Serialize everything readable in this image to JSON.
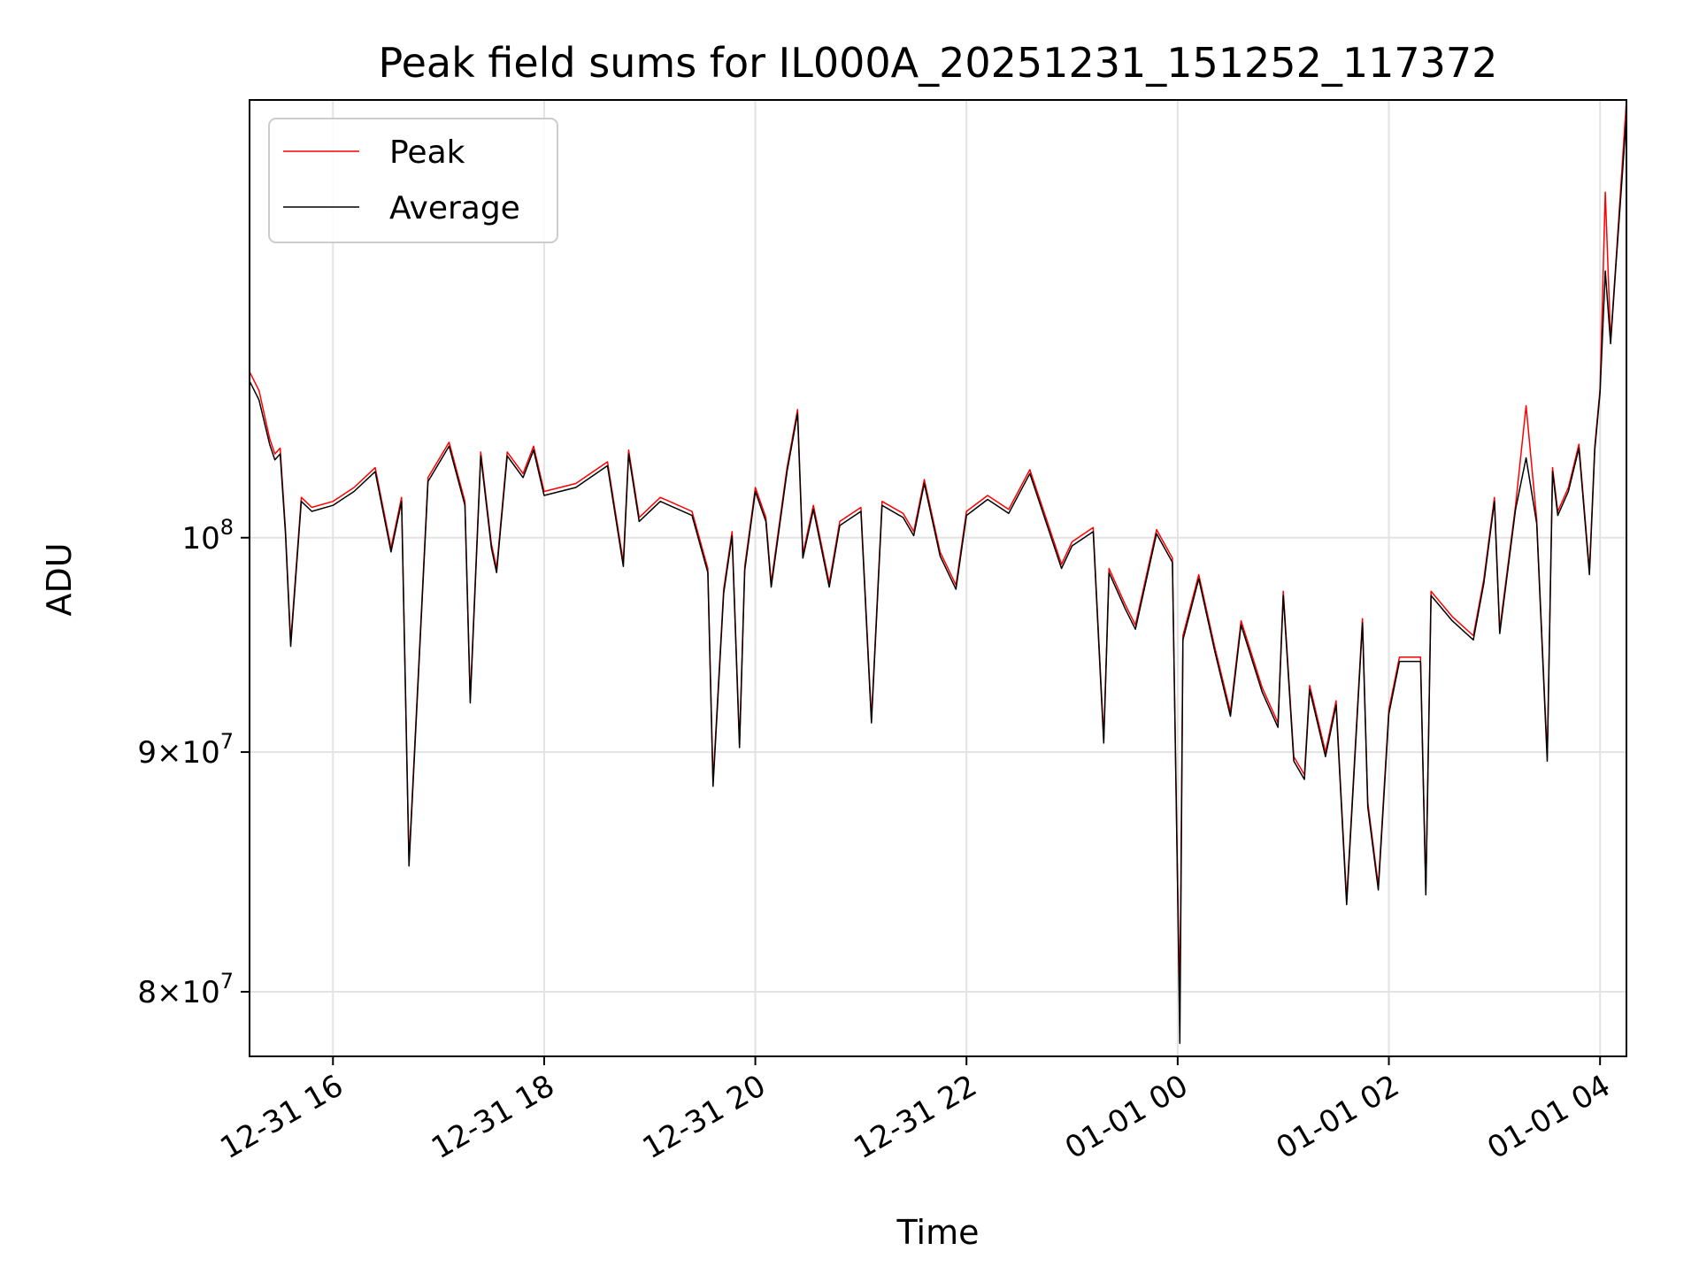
{
  "chart_data": {
    "type": "line",
    "title": "Peak field sums for IL000A_20251231_151252_117372",
    "xlabel": "Time",
    "ylabel": "ADU",
    "yscale": "log",
    "grid": true,
    "legend_position": "top-left",
    "xlim_hours": [
      15.21,
      28.25
    ],
    "ylim": [
      77500000,
      124000000
    ],
    "x_ticks": [
      {
        "hours": 16,
        "label": "12-31 16"
      },
      {
        "hours": 18,
        "label": "12-31 18"
      },
      {
        "hours": 20,
        "label": "12-31 20"
      },
      {
        "hours": 22,
        "label": "12-31 22"
      },
      {
        "hours": 24,
        "label": "01-01 00"
      },
      {
        "hours": 26,
        "label": "01-01 02"
      },
      {
        "hours": 28,
        "label": "01-01 04"
      }
    ],
    "y_ticks": [
      {
        "value": 80000000,
        "mant": "8",
        "times": "×10",
        "exp": "7"
      },
      {
        "value": 90000000,
        "mant": "9",
        "times": "×10",
        "exp": "7"
      },
      {
        "value": 100000000,
        "mant": "",
        "times": "10",
        "exp": "8"
      }
    ],
    "x_hours": [
      15.21,
      15.3,
      15.4,
      15.45,
      15.5,
      15.55,
      15.6,
      15.7,
      15.8,
      16.0,
      16.2,
      16.4,
      16.55,
      16.65,
      16.72,
      16.9,
      17.1,
      17.25,
      17.3,
      17.4,
      17.5,
      17.55,
      17.65,
      17.8,
      17.9,
      18.0,
      18.3,
      18.6,
      18.75,
      18.8,
      18.9,
      19.1,
      19.4,
      19.55,
      19.6,
      19.7,
      19.78,
      19.85,
      19.9,
      20.0,
      20.1,
      20.15,
      20.3,
      20.4,
      20.45,
      20.55,
      20.7,
      20.8,
      21.0,
      21.1,
      21.2,
      21.4,
      21.5,
      21.6,
      21.75,
      21.9,
      22.0,
      22.2,
      22.4,
      22.6,
      22.9,
      23.0,
      23.2,
      23.3,
      23.35,
      23.5,
      23.6,
      23.8,
      23.95,
      24.0,
      24.02,
      24.05,
      24.2,
      24.35,
      24.5,
      24.6,
      24.8,
      24.95,
      25.0,
      25.1,
      25.2,
      25.25,
      25.4,
      25.5,
      25.6,
      25.75,
      25.8,
      25.9,
      26.0,
      26.1,
      26.3,
      26.35,
      26.4,
      26.6,
      26.8,
      26.9,
      27.0,
      27.05,
      27.2,
      27.3,
      27.4,
      27.5,
      27.55,
      27.6,
      27.7,
      27.8,
      27.9,
      27.95,
      28.0,
      28.05,
      28.1,
      28.15,
      28.25
    ],
    "series": [
      {
        "name": "Peak",
        "color": "#ff0000",
        "values": [
          108500000,
          107500000,
          105000000,
          104200000,
          104500000,
          100400000,
          95000000,
          102000000,
          101500000,
          101800000,
          102500000,
          103500000,
          99500000,
          102000000,
          85300000,
          103000000,
          104800000,
          101800000,
          92400000,
          104300000,
          99700000,
          98500000,
          104300000,
          103200000,
          104600000,
          102300000,
          102700000,
          103800000,
          98800000,
          104400000,
          101000000,
          102000000,
          101300000,
          98500000,
          88700000,
          97500000,
          100300000,
          90400000,
          98600000,
          102500000,
          101000000,
          97800000,
          103500000,
          106500000,
          99200000,
          101600000,
          97800000,
          100800000,
          101500000,
          91500000,
          101800000,
          101200000,
          100300000,
          102900000,
          99300000,
          97700000,
          101300000,
          102100000,
          101400000,
          103400000,
          98700000,
          99800000,
          100500000,
          90600000,
          98500000,
          96800000,
          95800000,
          100400000,
          99000000,
          84100000,
          79500000,
          95300000,
          98200000,
          94800000,
          91800000,
          96000000,
          92900000,
          91300000,
          97400000,
          89800000,
          89000000,
          93000000,
          90000000,
          92300000,
          83700000,
          96100000,
          87800000,
          84300000,
          91900000,
          94300000,
          94300000,
          84100000,
          97400000,
          96200000,
          95300000,
          98000000,
          102000000,
          95600000,
          101600000,
          106700000,
          100900000,
          89800000,
          103500000,
          101300000,
          102500000,
          104700000,
          98400000,
          104600000,
          107600000,
          118500000,
          110200000,
          114500000,
          124000000
        ]
      },
      {
        "name": "Average",
        "color": "#000000",
        "values": [
          108000000,
          107000000,
          104700000,
          103900000,
          104200000,
          100200000,
          94800000,
          101800000,
          101300000,
          101600000,
          102300000,
          103300000,
          99300000,
          101800000,
          85100000,
          102800000,
          104600000,
          101600000,
          92200000,
          104100000,
          99500000,
          98300000,
          104100000,
          103000000,
          104400000,
          102100000,
          102500000,
          103600000,
          98600000,
          104200000,
          100800000,
          101800000,
          101100000,
          98300000,
          88500000,
          97300000,
          100100000,
          90200000,
          98400000,
          102300000,
          100800000,
          97600000,
          103300000,
          106300000,
          99000000,
          101400000,
          97600000,
          100600000,
          101300000,
          91300000,
          101600000,
          101000000,
          100100000,
          102700000,
          99100000,
          97500000,
          101100000,
          101900000,
          101200000,
          103200000,
          98500000,
          99600000,
          100300000,
          90400000,
          98300000,
          96600000,
          95600000,
          100200000,
          98800000,
          83900000,
          78000000,
          95100000,
          98000000,
          94600000,
          91600000,
          95800000,
          92700000,
          91100000,
          97200000,
          89600000,
          88800000,
          92800000,
          89800000,
          92100000,
          83500000,
          95900000,
          87600000,
          84100000,
          91700000,
          94100000,
          94100000,
          83900000,
          97200000,
          96000000,
          95100000,
          97800000,
          101800000,
          95400000,
          101400000,
          104000000,
          100700000,
          89600000,
          103300000,
          101100000,
          102300000,
          104500000,
          98200000,
          104400000,
          107400000,
          114000000,
          110000000,
          114300000,
          123000000
        ]
      }
    ]
  }
}
